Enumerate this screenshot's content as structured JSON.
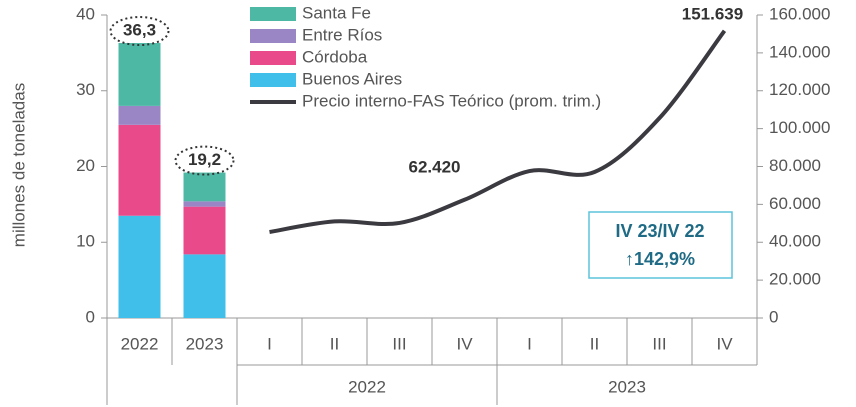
{
  "chart_data": {
    "type": "bar_line",
    "y_label": "millones de toneladas",
    "bar_categories": [
      "2022",
      "2023"
    ],
    "series": [
      {
        "name": "Buenos Aires",
        "color": "#3fbfea",
        "values": [
          13.5,
          8.4
        ]
      },
      {
        "name": "Córdoba",
        "color": "#e94a8a",
        "values": [
          12,
          6.3
        ]
      },
      {
        "name": "Entre Ríos",
        "color": "#9b86c5",
        "values": [
          2.5,
          0.7
        ]
      },
      {
        "name": "Santa Fe",
        "color": "#4db8a4",
        "values": [
          8.3,
          3.8
        ]
      }
    ],
    "totals": [
      36.3,
      19.2
    ],
    "total_labels": [
      "36,3",
      "19,2"
    ],
    "line": {
      "name": "Precio interno-FAS Teórico (prom. trim.)",
      "color": "#3a3a40",
      "axis": "y2",
      "x": [
        "I",
        "II",
        "III",
        "IV",
        "I",
        "II",
        "III",
        "IV"
      ],
      "values": [
        45400,
        51000,
        50200,
        62420,
        77600,
        77100,
        105600,
        151639
      ],
      "value_labels": [
        null,
        null,
        null,
        "62.420",
        null,
        null,
        null,
        "151.639"
      ]
    },
    "x_groups": [
      "2022",
      "2023"
    ],
    "ylim": [
      0,
      40
    ],
    "yticks": [
      0,
      10,
      20,
      30,
      40
    ],
    "y2lim": [
      0,
      160000
    ],
    "y2ticks": [
      0,
      {
        "value": 20000,
        "label": "20.000"
      },
      {
        "value": 40000,
        "label": "40.000"
      },
      {
        "value": 60000,
        "label": "60.000"
      },
      {
        "value": 80000,
        "label": "80.000"
      },
      {
        "value": 100000,
        "label": "100.000"
      },
      {
        "value": 120000,
        "label": "120.000"
      },
      {
        "value": 140000,
        "label": "140.000"
      },
      {
        "value": 160000,
        "label": "160.000"
      }
    ],
    "annotation": {
      "title": "IV 23/IV 22",
      "text": "↑142,9%"
    }
  }
}
